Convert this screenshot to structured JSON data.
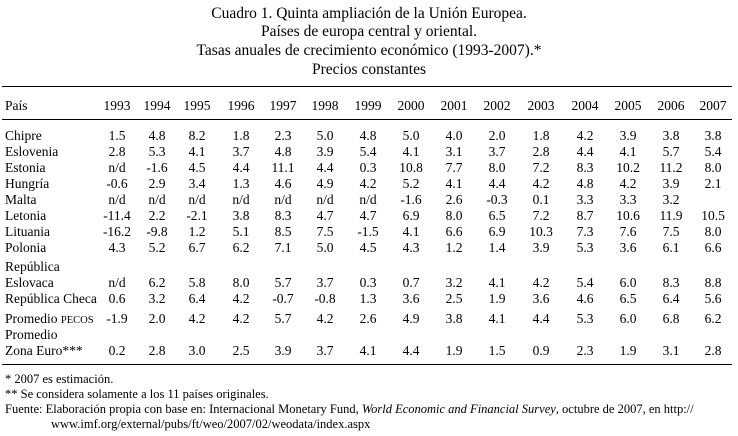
{
  "header": {
    "title_line1": "Cuadro 1. Quinta ampliación de la Unión Europea.",
    "title_line2": "Países de europa central y oriental.",
    "title_line3": "Tasas anuales de crecimiento económico (1993-2007).*",
    "title_line4": "Precios constantes"
  },
  "table": {
    "corner_label": "País",
    "years": [
      "1993",
      "1994",
      "1995",
      "1996",
      "1997",
      "1998",
      "1999",
      "2000",
      "2001",
      "2002",
      "2003",
      "2004",
      "2005",
      "2006",
      "2007"
    ],
    "rows_block1": [
      {
        "label": "Chipre",
        "values": [
          "1.5",
          "4.8",
          "8.2",
          "1.8",
          "2.3",
          "5.0",
          "4.8",
          "5.0",
          "4.0",
          "2.0",
          "1.8",
          "4.2",
          "3.9",
          "3.8",
          "3.8"
        ]
      },
      {
        "label": "Eslovenia",
        "values": [
          "2.8",
          "5.3",
          "4.1",
          "3.7",
          "4.8",
          "3.9",
          "5.4",
          "4.1",
          "3.1",
          "3.7",
          "2.8",
          "4.4",
          "4.1",
          "5.7",
          "5.4"
        ]
      },
      {
        "label": "Estonia",
        "values": [
          "n/d",
          "-1.6",
          "4.5",
          "4.4",
          "11.1",
          "4.4",
          "0.3",
          "10.8",
          "7.7",
          "8.0",
          "7.2",
          "8.3",
          "10.2",
          "11.2",
          "8.0"
        ]
      },
      {
        "label": "Hungría",
        "values": [
          "-0.6",
          "2.9",
          "3.4",
          "1.3",
          "4.6",
          "4.9",
          "4.2",
          "5.2",
          "4.1",
          "4.4",
          "4.2",
          "4.8",
          "4.2",
          "3.9",
          "2.1"
        ]
      },
      {
        "label": "Malta",
        "values": [
          "n/d",
          "n/d",
          "n/d",
          "n/d",
          "n/d",
          "n/d",
          "n/d",
          "-1.6",
          "2.6",
          "-0.3",
          "0.1",
          "3.3",
          "3.3",
          "3.2",
          ""
        ]
      },
      {
        "label": "Letonia",
        "values": [
          "-11.4",
          "2.2",
          "-2.1",
          "3.8",
          "8.3",
          "4.7",
          "4.7",
          "6.9",
          "8.0",
          "6.5",
          "7.2",
          "8.7",
          "10.6",
          "11.9",
          "10.5"
        ]
      },
      {
        "label": "Lituania",
        "values": [
          "-16.2",
          "-9.8",
          "1.2",
          "5.1",
          "8.5",
          "7.5",
          "-1.5",
          "4.1",
          "6.6",
          "6.9",
          "10.3",
          "7.3",
          "7.6",
          "7.5",
          "8.0"
        ]
      },
      {
        "label": "Polonia",
        "values": [
          "4.3",
          "5.2",
          "6.7",
          "6.2",
          "7.1",
          "5.0",
          "4.5",
          "4.3",
          "1.2",
          "1.4",
          "3.9",
          "5.3",
          "3.6",
          "6.1",
          "6.6"
        ]
      }
    ],
    "eslovaca_label_line1": "República",
    "eslovaca_label_line2": "Eslovaca",
    "eslovaca_values": [
      "n/d",
      "6.2",
      "5.8",
      "8.0",
      "5.7",
      "3.7",
      "0.3",
      "0.7",
      "3.2",
      "4.1",
      "4.2",
      "5.4",
      "6.0",
      "8.3",
      "8.8"
    ],
    "checa_label": "República Checa",
    "checa_values": [
      "0.6",
      "3.2",
      "6.4",
      "4.2",
      "-0.7",
      "-0.8",
      "1.3",
      "3.6",
      "2.5",
      "1.9",
      "3.6",
      "4.6",
      "6.5",
      "6.4",
      "5.6"
    ],
    "pecos_label_prefix": "Promedio ",
    "pecos_label_smallcaps": "PECOS",
    "pecos_values": [
      "-1.9",
      "2.0",
      "4.2",
      "4.2",
      "5.7",
      "4.2",
      "2.6",
      "4.9",
      "3.8",
      "4.1",
      "4.4",
      "5.3",
      "6.0",
      "6.8",
      "6.2"
    ],
    "euro_label_line1": "Promedio",
    "euro_label_line2": "Zona Euro***",
    "euro_values": [
      "0.2",
      "2.8",
      "3.0",
      "2.5",
      "3.9",
      "3.7",
      "4.1",
      "4.4",
      "1.9",
      "1.5",
      "0.9",
      "2.3",
      "1.9",
      "3.1",
      "2.8"
    ]
  },
  "notes": {
    "note1": "* 2007 es estimación.",
    "note2": "** Se considera solamente a los 11 países originales.",
    "source_prefix": "Fuente:  Elaboración propia con base en: Internacional Monetary Fund, ",
    "source_title": "World Economic and Financial Survey",
    "source_suffix": ", octubre de 2007, en http://",
    "source_line2": "www.imf.org/external/pubs/ft/weo/2007/02/weodata/index.aspx"
  }
}
